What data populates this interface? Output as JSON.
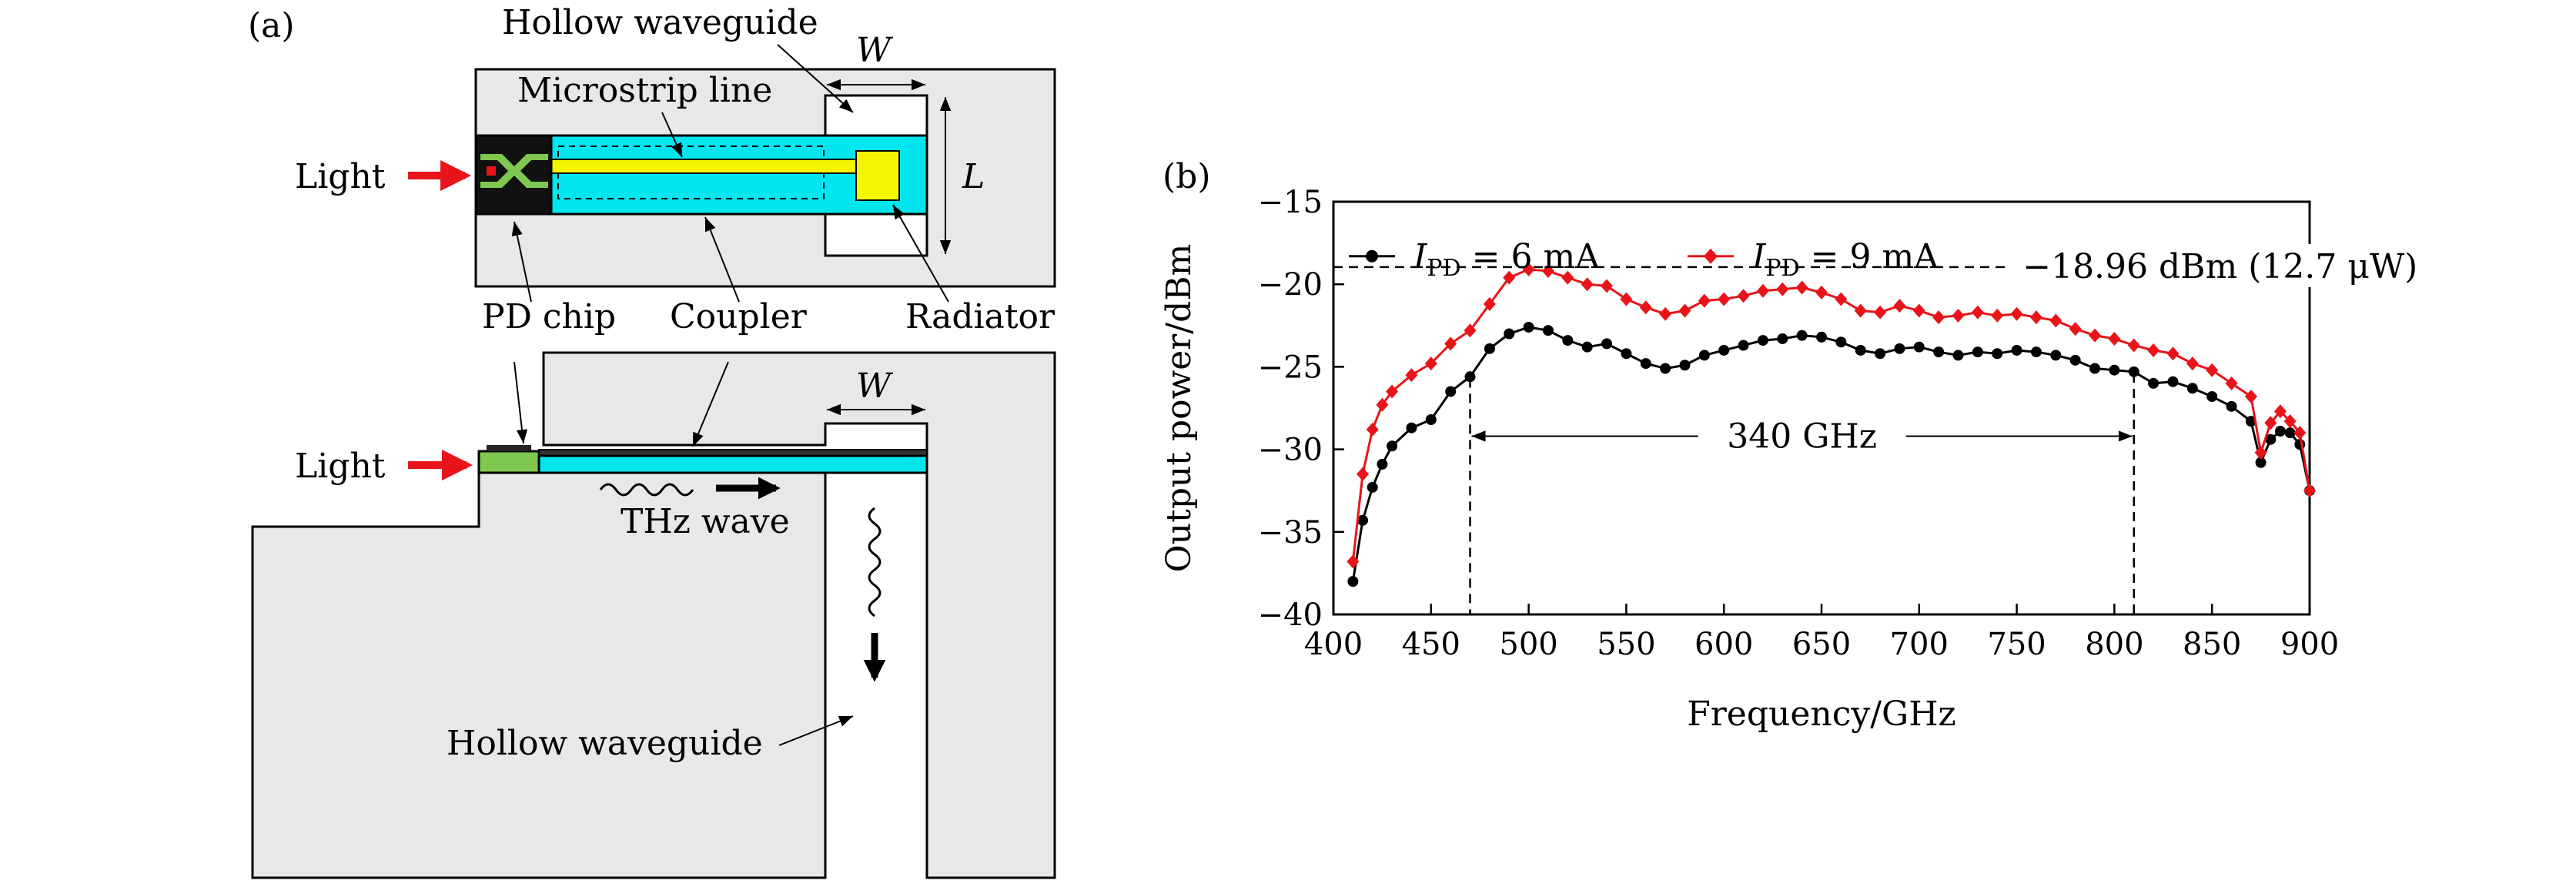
{
  "panel_a": {
    "label": "(a)",
    "top_view": {
      "hollow_waveguide": "Hollow waveguide",
      "microstrip": "Microstrip line",
      "light": "Light",
      "w": "W",
      "l": "L",
      "pd_chip": "PD chip",
      "coupler": "Coupler",
      "radiator": "Radiator"
    },
    "side_view": {
      "light": "Light",
      "w": "W",
      "thz_wave": "THz wave",
      "hollow_waveguide": "Hollow waveguide"
    },
    "colors": {
      "housing": "#e8e8e8",
      "coupler": "#00e5ee",
      "microstrip": "#f5f500",
      "pd_chip": "#000000",
      "pd_chip_green": "#7ec850",
      "light_arrow": "#e8141a"
    }
  },
  "panel_b": {
    "label": "(b)",
    "annotation_peak": "−18.96 dBm (12.7 μW)",
    "annotation_bw": "340 GHz",
    "series_prefix": "I",
    "series_sub": "PD",
    "series_1_value": " = 6 mA",
    "series_2_value": " = 9 mA"
  },
  "chart_data": {
    "type": "line",
    "xlabel": "Frequency/GHz",
    "ylabel": "Output power/dBm",
    "xlim": [
      400,
      900
    ],
    "ylim": [
      -40,
      -15
    ],
    "xticks": [
      400,
      450,
      500,
      550,
      600,
      650,
      700,
      750,
      800,
      850,
      900
    ],
    "yticks": [
      -15,
      -20,
      -25,
      -30,
      -35,
      -40
    ],
    "legend_position": "top-left",
    "grid": false,
    "annotations": {
      "peak_dBm": -18.96,
      "bandwidth_start_GHz": 470,
      "bandwidth_end_GHz": 810
    },
    "series": [
      {
        "name": "I_PD = 6 mA",
        "color": "#000000",
        "marker": "circle",
        "points": [
          [
            410,
            -38.0
          ],
          [
            415,
            -34.3
          ],
          [
            420,
            -32.3
          ],
          [
            425,
            -30.9
          ],
          [
            430,
            -29.8
          ],
          [
            440,
            -28.7
          ],
          [
            450,
            -28.2
          ],
          [
            460,
            -26.5
          ],
          [
            470,
            -25.6
          ],
          [
            480,
            -23.9
          ],
          [
            490,
            -23.0
          ],
          [
            500,
            -22.6
          ],
          [
            510,
            -22.8
          ],
          [
            520,
            -23.4
          ],
          [
            530,
            -23.8
          ],
          [
            540,
            -23.6
          ],
          [
            550,
            -24.2
          ],
          [
            560,
            -24.8
          ],
          [
            570,
            -25.1
          ],
          [
            580,
            -24.9
          ],
          [
            590,
            -24.3
          ],
          [
            600,
            -24.0
          ],
          [
            610,
            -23.7
          ],
          [
            620,
            -23.4
          ],
          [
            630,
            -23.3
          ],
          [
            640,
            -23.1
          ],
          [
            650,
            -23.2
          ],
          [
            660,
            -23.5
          ],
          [
            670,
            -24.0
          ],
          [
            680,
            -24.2
          ],
          [
            690,
            -23.9
          ],
          [
            700,
            -23.8
          ],
          [
            710,
            -24.1
          ],
          [
            720,
            -24.3
          ],
          [
            730,
            -24.1
          ],
          [
            740,
            -24.2
          ],
          [
            750,
            -24.0
          ],
          [
            760,
            -24.1
          ],
          [
            770,
            -24.3
          ],
          [
            780,
            -24.6
          ],
          [
            790,
            -25.1
          ],
          [
            800,
            -25.2
          ],
          [
            810,
            -25.3
          ],
          [
            820,
            -26.0
          ],
          [
            830,
            -25.9
          ],
          [
            840,
            -26.3
          ],
          [
            850,
            -26.8
          ],
          [
            860,
            -27.4
          ],
          [
            870,
            -28.3
          ],
          [
            875,
            -30.8
          ],
          [
            880,
            -29.4
          ],
          [
            885,
            -28.9
          ],
          [
            890,
            -29.0
          ],
          [
            895,
            -29.7
          ],
          [
            900,
            -32.5
          ]
        ]
      },
      {
        "name": "I_PD = 9 mA",
        "color": "#e8141a",
        "marker": "diamond",
        "points": [
          [
            410,
            -36.8
          ],
          [
            415,
            -31.5
          ],
          [
            420,
            -28.8
          ],
          [
            425,
            -27.3
          ],
          [
            430,
            -26.5
          ],
          [
            440,
            -25.5
          ],
          [
            450,
            -24.8
          ],
          [
            460,
            -23.6
          ],
          [
            470,
            -22.8
          ],
          [
            480,
            -21.2
          ],
          [
            490,
            -19.6
          ],
          [
            500,
            -19.1
          ],
          [
            510,
            -19.2
          ],
          [
            520,
            -19.6
          ],
          [
            530,
            -20.0
          ],
          [
            540,
            -20.1
          ],
          [
            550,
            -20.9
          ],
          [
            560,
            -21.4
          ],
          [
            570,
            -21.8
          ],
          [
            580,
            -21.6
          ],
          [
            590,
            -21.0
          ],
          [
            600,
            -20.9
          ],
          [
            610,
            -20.7
          ],
          [
            620,
            -20.4
          ],
          [
            630,
            -20.3
          ],
          [
            640,
            -20.2
          ],
          [
            650,
            -20.5
          ],
          [
            660,
            -20.9
          ],
          [
            670,
            -21.6
          ],
          [
            680,
            -21.7
          ],
          [
            690,
            -21.3
          ],
          [
            700,
            -21.6
          ],
          [
            710,
            -22.0
          ],
          [
            720,
            -21.9
          ],
          [
            730,
            -21.7
          ],
          [
            740,
            -21.9
          ],
          [
            750,
            -21.8
          ],
          [
            760,
            -22.0
          ],
          [
            770,
            -22.2
          ],
          [
            780,
            -22.7
          ],
          [
            790,
            -23.1
          ],
          [
            800,
            -23.3
          ],
          [
            810,
            -23.7
          ],
          [
            820,
            -24.0
          ],
          [
            830,
            -24.2
          ],
          [
            840,
            -24.8
          ],
          [
            850,
            -25.2
          ],
          [
            860,
            -26.0
          ],
          [
            870,
            -26.8
          ],
          [
            875,
            -30.2
          ],
          [
            880,
            -28.4
          ],
          [
            885,
            -27.7
          ],
          [
            890,
            -28.3
          ],
          [
            895,
            -29.0
          ],
          [
            900,
            -32.5
          ]
        ]
      }
    ]
  }
}
